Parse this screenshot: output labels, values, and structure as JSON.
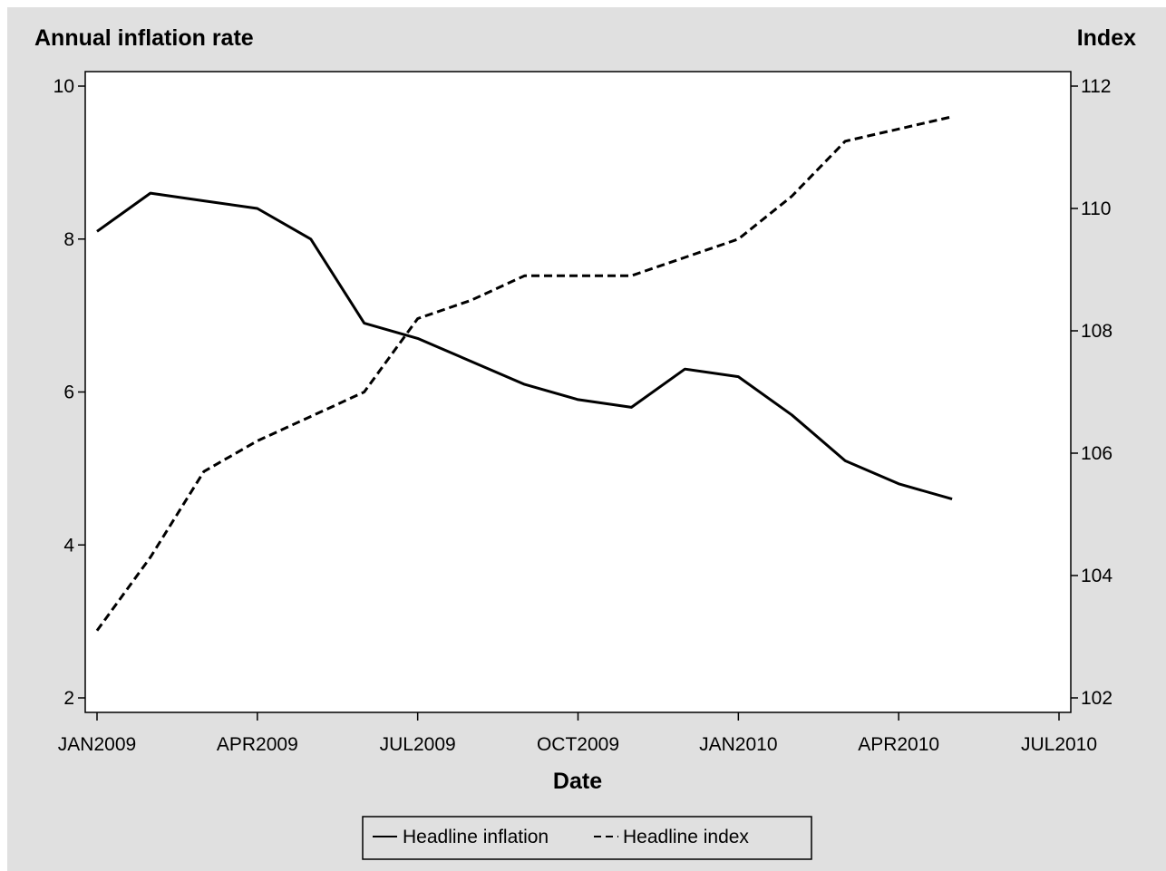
{
  "chart_data": {
    "type": "line",
    "xlabel": "Date",
    "ylabel": "Annual inflation rate",
    "y2label": "Index",
    "x": [
      "JAN2009",
      "FEB2009",
      "MAR2009",
      "APR2009",
      "MAY2009",
      "JUN2009",
      "JUL2009",
      "AUG2009",
      "SEP2009",
      "OCT2009",
      "NOV2009",
      "DEC2009",
      "JAN2010",
      "FEB2010",
      "MAR2010",
      "APR2010",
      "MAY2010"
    ],
    "xticks": [
      "JAN2009",
      "APR2009",
      "JUL2009",
      "OCT2009",
      "JAN2010",
      "APR2010",
      "JUL2010"
    ],
    "yticks": [
      "2",
      "4",
      "6",
      "8",
      "10"
    ],
    "y2ticks": [
      "102",
      "104",
      "106",
      "108",
      "110",
      "112"
    ],
    "ylim": [
      2,
      10
    ],
    "y2lim": [
      102,
      112
    ],
    "xlim": [
      "JAN2009",
      "JUL2010"
    ],
    "grid": false,
    "legend_position": "bottom",
    "series": [
      {
        "name": "Headline inflation",
        "axis": "left",
        "style": "solid",
        "values": [
          8.1,
          8.6,
          8.5,
          8.4,
          8.0,
          6.9,
          6.7,
          6.4,
          6.1,
          5.9,
          5.8,
          6.3,
          6.2,
          5.7,
          5.1,
          4.8,
          4.6
        ]
      },
      {
        "name": "Headline index",
        "axis": "right",
        "style": "dashed",
        "values": [
          103.1,
          104.3,
          105.7,
          106.2,
          106.6,
          107.0,
          108.2,
          108.5,
          108.9,
          108.9,
          108.9,
          109.2,
          109.5,
          110.2,
          111.1,
          111.3,
          111.5
        ]
      }
    ],
    "colors": {
      "background": "#e0e0e0",
      "plot_background": "#ffffff",
      "line": "#000000"
    }
  }
}
